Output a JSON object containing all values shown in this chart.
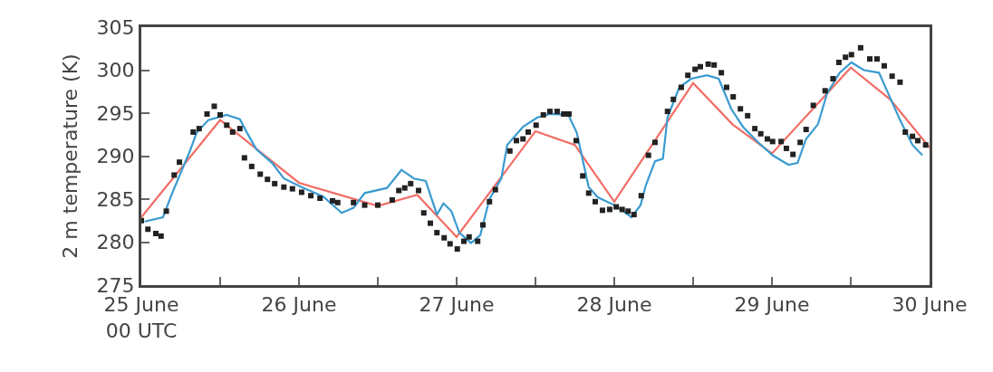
{
  "chart_data": {
    "type": "line",
    "ylabel": "2 m temperature (K)",
    "xlim": [
      "--06-25",
      "--06-30"
    ],
    "ylim": [
      275,
      305
    ],
    "xticks": [
      {
        "value": "--06-25",
        "label": "25 June\n00 UTC"
      },
      {
        "value": "--06-25T12:00",
        "label": null
      },
      {
        "value": "--06-26",
        "label": "26 June"
      },
      {
        "value": "--06-26T12:00",
        "label": null
      },
      {
        "value": "--06-27",
        "label": "27 June"
      },
      {
        "value": "--06-27T12:00",
        "label": null
      },
      {
        "value": "--06-28",
        "label": "28 June"
      },
      {
        "value": "--06-28T12:00",
        "label": null
      },
      {
        "value": "--06-29",
        "label": "29 June"
      },
      {
        "value": "--06-29T12:00",
        "label": null
      },
      {
        "value": "--06-30",
        "label": "30 June"
      }
    ],
    "yticks": [
      275,
      280,
      285,
      290,
      295,
      300,
      305
    ],
    "series": [
      {
        "color": "#f26c64",
        "x": [
          "--06-25T00:00",
          "--06-25T12:00",
          "--06-26T00:00",
          "--06-26T12:00",
          "--06-26T18:00",
          "--06-27T00:00",
          "--06-27T12:00",
          "--06-27T18:00",
          "--06-28T00:00",
          "--06-28T12:00",
          "--06-28T18:00",
          "--06-29T00:00",
          "--06-29T12:00",
          "--06-29T18:00",
          "--06-30T00:00"
        ],
        "values": [
          282.9,
          294.2,
          286.9,
          284.2,
          285.5,
          280.6,
          292.9,
          291.3,
          284.7,
          298.5,
          293.7,
          290.3,
          300.3,
          296.6,
          291
        ]
      },
      {
        "color": "#3a9bd0",
        "x": [
          "--06-25T00:30",
          "--06-25T03:18",
          "--06-25T04:42",
          "--06-25T07:24",
          "--06-25T08:24",
          "--06-25T10:12",
          "--06-25T13:00",
          "--06-25T15:00",
          "--06-25T16:06",
          "--06-25T17:30",
          "--06-25T19:54",
          "--06-25T21:42",
          "--06-26T00:24",
          "--06-26T03:42",
          "--06-26T06:30",
          "--06-26T08:18",
          "--06-26T10:00",
          "--06-26T13:24",
          "--06-26T15:36",
          "--06-26T17:30",
          "--06-26T19:18",
          "--06-26T21:00",
          "--06-26T22:00",
          "--06-26T23:12",
          "--06-27T00:24",
          "--06-27T02:12",
          "--06-27T03:36",
          "--06-27T05:00",
          "--06-27T06:48",
          "--06-27T07:42",
          "--06-27T10:06",
          "--06-27T12:18",
          "--06-27T14:12",
          "--06-27T17:00",
          "--06-27T18:18",
          "--06-27T20:06",
          "--06-27T21:30",
          "--06-28T00:18",
          "--06-28T02:36",
          "--06-28T04:00",
          "--06-28T04:48",
          "--06-28T06:12",
          "--06-28T07:24",
          "--06-28T08:06",
          "--06-28T09:54",
          "--06-28T11:42",
          "--06-28T14:06",
          "--06-28T15:54",
          "--06-28T17:48",
          "--06-28T19:36",
          "--06-28T21:54",
          "--06-29T00:06",
          "--06-29T02:30",
          "--06-29T03:54",
          "--06-29T05:12",
          "--06-29T07:00",
          "--06-29T08:24",
          "--06-29T10:18",
          "--06-29T12:06",
          "--06-29T14:00",
          "--06-29T16:18",
          "--06-29T17:42",
          "--06-29T19:30",
          "--06-29T21:24",
          "--06-29T22:54"
        ],
        "values": [
          282.4,
          282.9,
          285.7,
          290.6,
          292.7,
          294.2,
          294.8,
          294.3,
          292.7,
          290.8,
          289.2,
          287.4,
          286.4,
          285.3,
          283.4,
          284,
          285.7,
          286.3,
          288.4,
          287.4,
          287.1,
          283.2,
          284.5,
          283.6,
          281.1,
          279.9,
          280.8,
          285,
          287.4,
          291.3,
          293.4,
          294.5,
          294.9,
          294.8,
          292.7,
          286.4,
          285.2,
          284.2,
          282.9,
          284.3,
          286.6,
          289.4,
          289.7,
          294.5,
          298,
          299,
          299.4,
          299,
          295.5,
          293.4,
          291.6,
          290.1,
          289,
          289.2,
          292,
          293.7,
          297.3,
          299.7,
          300.9,
          300,
          299.7,
          297.3,
          294.2,
          291.3,
          290.1
        ]
      },
      {
        "type": "scatter",
        "marker": "square",
        "color": "#222222",
        "x": [
          "--06-25T00:00",
          "--06-25T01:00",
          "--06-25T02:12",
          "--06-25T03:00",
          "--06-25T03:48",
          "--06-25T05:00",
          "--06-25T05:48",
          "--06-25T07:54",
          "--06-25T08:48",
          "--06-25T10:00",
          "--06-25T11:06",
          "--06-25T12:00",
          "--06-25T13:00",
          "--06-25T13:54",
          "--06-25T15:00",
          "--06-25T15:42",
          "--06-25T16:48",
          "--06-25T18:06",
          "--06-25T19:12",
          "--06-25T20:18",
          "--06-25T21:42",
          "--06-25T23:00",
          "--06-26T00:24",
          "--06-26T01:48",
          "--06-26T03:12",
          "--06-26T05:06",
          "--06-26T05:54",
          "--06-26T08:18",
          "--06-26T10:00",
          "--06-26T12:00",
          "--06-26T14:12",
          "--06-26T15:12",
          "--06-26T16:06",
          "--06-26T17:00",
          "--06-26T18:12",
          "--06-26T19:00",
          "--06-26T20:00",
          "--06-26T21:00",
          "--06-26T22:06",
          "--06-26T23:00",
          "--06-27T00:06",
          "--06-27T01:06",
          "--06-27T01:54",
          "--06-27T03:12",
          "--06-27T04:00",
          "--06-27T05:00",
          "--06-27T05:54",
          "--06-27T08:06",
          "--06-27T09:06",
          "--06-27T10:06",
          "--06-27T10:54",
          "--06-27T12:06",
          "--06-27T13:12",
          "--06-27T14:12",
          "--06-27T15:18",
          "--06-27T16:18",
          "--06-27T17:06",
          "--06-27T18:12",
          "--06-27T19:12",
          "--06-27T20:06",
          "--06-27T21:06",
          "--06-27T22:12",
          "--06-27T23:18",
          "--06-28T00:18",
          "--06-28T01:12",
          "--06-28T02:06",
          "--06-28T03:00",
          "--06-28T04:06",
          "--06-28T05:12",
          "--06-28T06:12",
          "--06-28T08:06",
          "--06-28T09:00",
          "--06-28T10:12",
          "--06-28T11:12",
          "--06-28T12:18",
          "--06-28T13:06",
          "--06-28T14:18",
          "--06-28T15:12",
          "--06-28T16:18",
          "--06-28T17:06",
          "--06-28T18:06",
          "--06-28T19:12",
          "--06-28T20:18",
          "--06-28T21:24",
          "--06-28T22:18",
          "--06-28T23:18",
          "--06-29T00:06",
          "--06-29T01:24",
          "--06-29T02:12",
          "--06-29T03:12",
          "--06-29T04:18",
          "--06-29T05:12",
          "--06-29T06:18",
          "--06-29T08:06",
          "--06-29T09:18",
          "--06-29T10:12",
          "--06-29T11:12",
          "--06-29T12:06",
          "--06-29T13:30",
          "--06-29T14:54",
          "--06-29T16:00",
          "--06-29T17:06",
          "--06-29T18:18",
          "--06-29T19:30",
          "--06-29T20:18",
          "--06-29T21:24",
          "--06-29T22:12",
          "--06-29T23:24"
        ],
        "values": [
          282.5,
          281.5,
          281,
          280.7,
          283.6,
          287.8,
          289.3,
          292.8,
          293.2,
          294.9,
          295.8,
          294.8,
          293.6,
          292.8,
          293.2,
          289.8,
          288.8,
          287.9,
          287.3,
          286.8,
          286.4,
          286.2,
          285.8,
          285.4,
          285.1,
          284.8,
          284.6,
          284.6,
          284.3,
          284.3,
          284.9,
          286,
          286.3,
          286.8,
          286,
          283.4,
          282.2,
          281.1,
          280.5,
          279.8,
          279.2,
          280.1,
          280.6,
          280.1,
          282,
          284.7,
          286.1,
          290.6,
          291.8,
          292,
          292.8,
          293.6,
          294.8,
          295.2,
          295.2,
          294.9,
          294.9,
          291.8,
          287.7,
          285.7,
          284.7,
          283.7,
          283.8,
          284.1,
          283.8,
          283.6,
          283.2,
          285.4,
          290.1,
          291.6,
          295.2,
          296.6,
          298,
          299.4,
          300.1,
          300.4,
          300.7,
          300.6,
          299.7,
          298,
          296.9,
          295.5,
          294.7,
          293.2,
          292.6,
          292,
          291.7,
          291.7,
          290.9,
          290.2,
          291.6,
          293.1,
          295.9,
          297.6,
          299,
          300.9,
          301.5,
          301.8,
          302.6,
          301.3,
          301.3,
          300.5,
          299.3,
          298.6,
          292.8,
          292.3,
          291.8,
          291.3
        ]
      }
    ]
  }
}
